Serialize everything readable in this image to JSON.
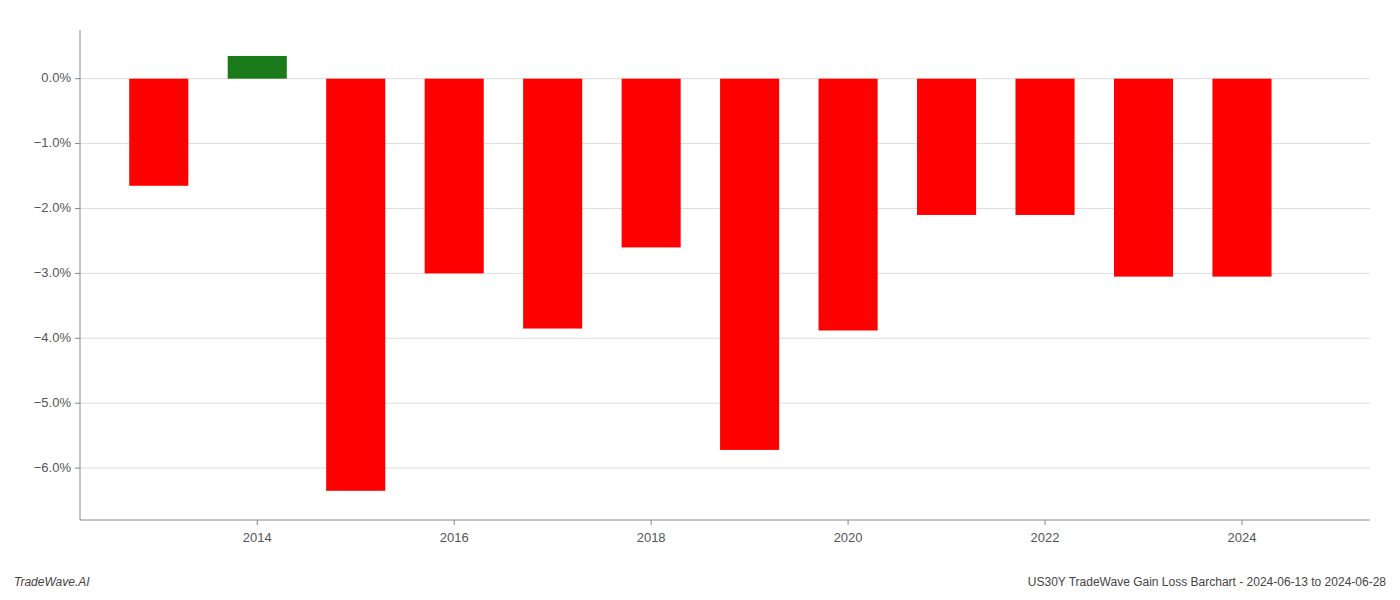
{
  "chart_data": {
    "type": "bar",
    "title": "US30Y TradeWave Gain Loss Barchart - 2024-06-13 to 2024-06-28",
    "annotations": [
      "TradeWave.AI"
    ],
    "x": [
      2013,
      2014,
      2015,
      2016,
      2017,
      2018,
      2019,
      2020,
      2021,
      2022,
      2023,
      2024
    ],
    "values": [
      -1.65,
      0.35,
      -6.35,
      -3.0,
      -3.85,
      -2.6,
      -5.72,
      -3.88,
      -2.1,
      -2.1,
      -3.05,
      -3.05
    ],
    "colors": [
      "#ff0000",
      "#1a7a1a",
      "#ff0000",
      "#ff0000",
      "#ff0000",
      "#ff0000",
      "#ff0000",
      "#ff0000",
      "#ff0000",
      "#ff0000",
      "#ff0000",
      "#ff0000"
    ],
    "xlim": [
      2012.2,
      2025.3
    ],
    "xticks": [
      2014,
      2016,
      2018,
      2020,
      2022,
      2024
    ],
    "ylim": [
      -6.8,
      0.75
    ],
    "yticks": [
      {
        "value": 0.0,
        "label": "0.0%"
      },
      {
        "value": -1.0,
        "label": "−1.0%"
      },
      {
        "value": -2.0,
        "label": "−2.0%"
      },
      {
        "value": -3.0,
        "label": "−3.0%"
      },
      {
        "value": -4.0,
        "label": "−4.0%"
      },
      {
        "value": -5.0,
        "label": "−5.0%"
      },
      {
        "value": -6.0,
        "label": "−6.0%"
      }
    ],
    "grid": true
  }
}
